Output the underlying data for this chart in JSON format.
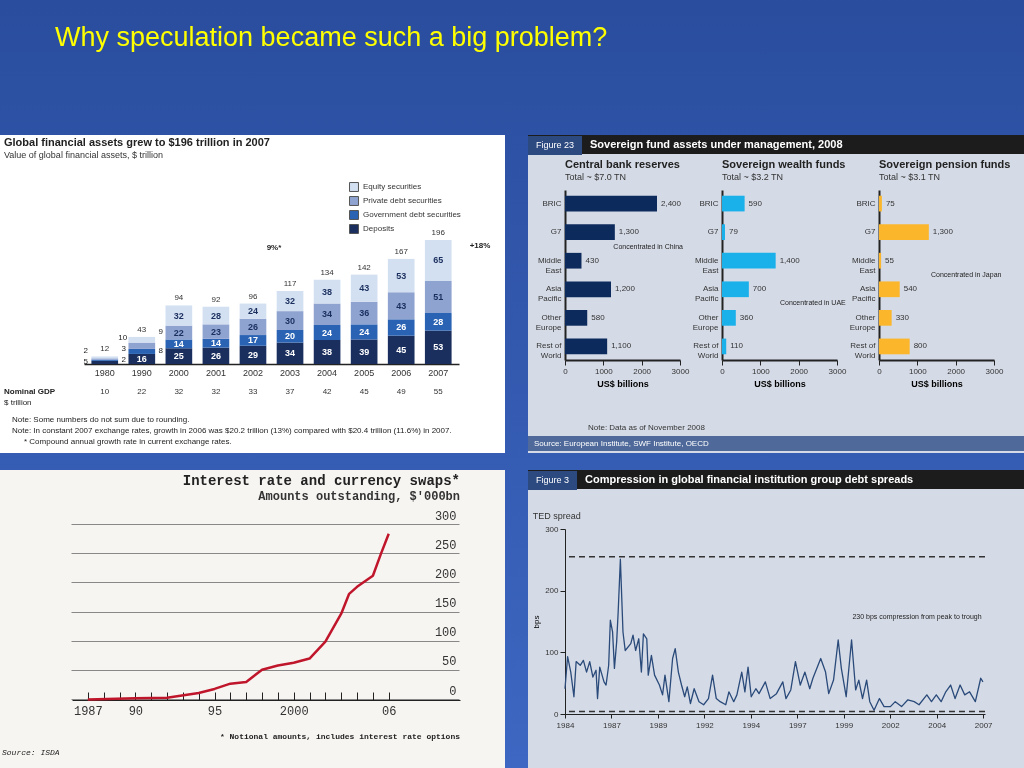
{
  "chart_data": [
    {
      "type": "other",
      "title": "Why speculation became such a big problem?"
    },
    {
      "type": "bar",
      "title": "Global financial assets grew to $196 trillion in 2007",
      "subtitle": "Value of global financial assets, $ trillion",
      "stacked": true,
      "data_labels": true,
      "legend": "top right",
      "categories": [
        "1980",
        "1990",
        "2000",
        "2001",
        "2002",
        "2003",
        "2004",
        "2005",
        "2006",
        "2007"
      ],
      "series": [
        {
          "name": "Deposits",
          "color": "#1b2f5e",
          "values": [
            5,
            16,
            25,
            26,
            29,
            34,
            38,
            39,
            45,
            53
          ]
        },
        {
          "name": "Government debt securities",
          "color": "#2a63b4",
          "values": [
            2,
            8,
            14,
            14,
            17,
            20,
            24,
            24,
            26,
            28
          ]
        },
        {
          "name": "Private debt securities",
          "color": "#8fa3d1",
          "values": [
            2,
            10,
            22,
            23,
            26,
            30,
            34,
            36,
            43,
            51
          ]
        },
        {
          "name": "Equity securities",
          "color": "#d3e0f2",
          "values": [
            3,
            9,
            32,
            28,
            24,
            32,
            38,
            43,
            53,
            65
          ]
        }
      ],
      "totals": [
        "12",
        "43",
        "94",
        "92",
        "96",
        "117",
        "134",
        "142",
        "167",
        "196"
      ],
      "annotations": [
        "9%*",
        "+18%",
        "Nominal GDP",
        "$ trillion",
        "10",
        "22",
        "32",
        "32",
        "33",
        "37",
        "42",
        "45",
        "49",
        "55",
        "Note: Some numbers do not sum due to rounding.",
        "Note: In constant 2007 exchange rates, growth in 2006 was $20.2 trillion (13%) compared with $20.4 trillion (11.6%) in 2007.",
        "* Compound annual growth rate in current exchange rates."
      ]
    },
    {
      "type": "other",
      "title": "Sovereign fund assets under management, 2008",
      "annotations": [
        "Figure 23",
        "Note: Data as of November 2008",
        "Source: European Institute, SWF Institute, OECD"
      ]
    },
    {
      "type": "bar",
      "orientation": "horizontal",
      "title": "Central bank reserves",
      "subtitle": "Total ~ $7.0 TN",
      "xlabel": "US$ billions",
      "categories": [
        "BRIC",
        "G7",
        "Middle East",
        "Asia Pacific",
        "Other Europe",
        "Rest of World"
      ],
      "values": [
        2400,
        1300,
        430,
        1200,
        580,
        1100
      ],
      "color": "#0d2a5c",
      "value_labels": [
        "2,400",
        "1,300",
        "430",
        "1,200",
        "580",
        "1,100"
      ],
      "xlim": [
        0,
        3000
      ],
      "xticks": [
        0,
        1000,
        2000,
        3000
      ],
      "annotations": [
        "Concentrated in China"
      ]
    },
    {
      "type": "bar",
      "orientation": "horizontal",
      "title": "Sovereign wealth funds",
      "subtitle": "Total ~ $3.2 TN",
      "xlabel": "US$ billions",
      "categories": [
        "BRIC",
        "G7",
        "Middle East",
        "Asia Pacific",
        "Other Europe",
        "Rest of World"
      ],
      "values": [
        590,
        79,
        1400,
        700,
        360,
        110
      ],
      "color": "#1ab0ea",
      "value_labels": [
        "590",
        "79",
        "1,400",
        "700",
        "360",
        "110"
      ],
      "xlim": [
        0,
        3000
      ],
      "xticks": [
        0,
        1000,
        2000,
        3000
      ],
      "annotations": [
        "Concentrated in UAE"
      ]
    },
    {
      "type": "bar",
      "orientation": "horizontal",
      "title": "Sovereign pension funds",
      "subtitle": "Total ~ $3.1 TN",
      "xlabel": "US$ billions",
      "categories": [
        "BRIC",
        "G7",
        "Middle East",
        "Asia Pacific",
        "Other Europe",
        "Rest of World"
      ],
      "values": [
        75,
        1300,
        55,
        540,
        330,
        800
      ],
      "color": "#fbb62c",
      "value_labels": [
        "75",
        "1,300",
        "55",
        "540",
        "330",
        "800"
      ],
      "xlim": [
        0,
        3000
      ],
      "xticks": [
        0,
        1000,
        2000,
        3000
      ],
      "annotations": [
        "Concentrated in Japan"
      ]
    },
    {
      "type": "line",
      "title": "Interest rate and currency swaps*",
      "subtitle": "Amounts outstanding, $'000bn",
      "grid": "y",
      "x": [
        1987,
        1990,
        1992,
        1994,
        1995,
        1996,
        1997,
        1998,
        1999,
        2000,
        2001,
        2002,
        2003,
        2003.5,
        2004,
        2005,
        2005.5,
        2006
      ],
      "values": [
        1,
        3,
        4,
        12,
        19,
        28,
        31,
        52,
        59,
        64,
        71,
        100,
        148,
        182,
        194,
        213,
        250,
        285
      ],
      "color": "#c0162b",
      "xlim": [
        1986,
        2010.5
      ],
      "ylim": [
        0,
        300
      ],
      "yticks": [
        0,
        50,
        100,
        150,
        200,
        250,
        300
      ],
      "xticks": [
        1987,
        {
          "value": 1988,
          "label": null
        },
        {
          "value": 1989,
          "label": null
        },
        {
          "value": 1990,
          "label": "90"
        },
        {
          "value": 1991,
          "label": null
        },
        {
          "value": 1992,
          "label": null
        },
        {
          "value": 1993,
          "label": null
        },
        {
          "value": 1994,
          "label": null
        },
        {
          "value": 1995,
          "label": "95"
        },
        {
          "value": 1996,
          "label": null
        },
        {
          "value": 1997,
          "label": null
        },
        {
          "value": 1998,
          "label": null
        },
        {
          "value": 1999,
          "label": null
        },
        2000,
        {
          "value": 2001,
          "label": null
        },
        {
          "value": 2002,
          "label": null
        },
        {
          "value": 2003,
          "label": null
        },
        {
          "value": 2004,
          "label": null
        },
        {
          "value": 2005,
          "label": null
        },
        {
          "value": 2006,
          "label": "06"
        }
      ],
      "annotations": [
        "* Notional amounts, includes interest rate options",
        "Source: ISDA"
      ]
    },
    {
      "type": "line",
      "title": "Compression in global financial institution group debt spreads",
      "subtitle": "TED spread",
      "ylabel": "bps",
      "color": "#2a4a7a",
      "x": [
        1984.0,
        1984.14,
        1984.31,
        1984.48,
        1984.6,
        1984.82,
        1984.99,
        1985.16,
        1985.33,
        1985.5,
        1985.67,
        1985.75,
        1985.87,
        1986.1,
        1986.21,
        1986.35,
        1986.44,
        1986.56,
        1986.66,
        1986.78,
        1986.86,
        1986.98,
        1987.12,
        1987.24,
        1987.54,
        1987.66,
        1987.8,
        1987.97,
        1988.11,
        1988.22,
        1988.4,
        1988.48,
        1988.65,
        1988.82,
        1989.08,
        1989.25,
        1989.38,
        1989.59,
        1989.79,
        1989.93,
        1990.1,
        1990.27,
        1990.44,
        1990.58,
        1990.75,
        1990.95,
        1991.21,
        1991.46,
        1991.72,
        1991.94,
        1992.14,
        1992.35,
        1992.65,
        1992.82,
        1993.08,
        1993.25,
        1993.51,
        1993.68,
        1993.85,
        1994.02,
        1994.27,
        1994.44,
        1994.78,
        1995.04,
        1995.38,
        1995.72,
        1995.89,
        1996.15,
        1996.4,
        1996.66,
        1996.91,
        1997.17,
        1997.34,
        1997.76,
        1998.02,
        1998.19,
        1998.45,
        1998.7,
        1998.87,
        1999.13,
        1999.42,
        1999.64,
        1999.81,
        2000.01,
        2000.23,
        2000.4,
        2000.63,
        2000.92,
        2001.17,
        2001.51,
        2001.77,
        2002.11,
        2002.45,
        2002.79,
        2003.05,
        2003.47,
        2003.72,
        2003.98,
        2004.24,
        2004.49,
        2004.75,
        2004.99,
        2005.26,
        2005.51,
        2005.77,
        2006.08,
        2006.37,
        2006.49
      ],
      "values": [
        41,
        93,
        68,
        28,
        85,
        79,
        87,
        68,
        85,
        60,
        71,
        25,
        76,
        52,
        47,
        79,
        152,
        133,
        74,
        117,
        165,
        251,
        133,
        103,
        114,
        128,
        103,
        122,
        68,
        130,
        122,
        63,
        95,
        63,
        47,
        31,
        63,
        20,
        90,
        106,
        68,
        47,
        28,
        44,
        17,
        41,
        20,
        15,
        25,
        63,
        25,
        20,
        15,
        36,
        20,
        31,
        68,
        36,
        76,
        28,
        41,
        33,
        52,
        25,
        33,
        52,
        25,
        39,
        85,
        47,
        68,
        41,
        58,
        90,
        68,
        33,
        55,
        120,
        74,
        28,
        120,
        39,
        55,
        25,
        55,
        20,
        6,
        25,
        12,
        12,
        20,
        12,
        23,
        20,
        15,
        31,
        20,
        31,
        20,
        36,
        47,
        25,
        47,
        31,
        36,
        20,
        58,
        52
      ],
      "xlim": [
        1984,
        2006.6
      ],
      "ylim": [
        0,
        300
      ],
      "yticks": [
        0,
        100,
        200,
        300
      ],
      "xticks": [
        1984,
        {
          "value": 1986.5,
          "label": "1987"
        },
        1989,
        {
          "value": 1991.5,
          "label": "1992"
        },
        1994,
        {
          "value": 1996.5,
          "label": "1997"
        },
        1999,
        {
          "value": 2001.5,
          "label": "2002"
        },
        2004,
        {
          "value": 2006.5,
          "label": "2007"
        }
      ],
      "ref_lines": [
        {
          "axis": "y",
          "value": 255,
          "color": "#333333",
          "line_style": "dashed"
        },
        {
          "axis": "y",
          "value": 4,
          "color": "#333333",
          "line_style": "dashed"
        }
      ],
      "annotations": [
        "Figure 3",
        "230 bps compression from peak to trough"
      ]
    }
  ]
}
